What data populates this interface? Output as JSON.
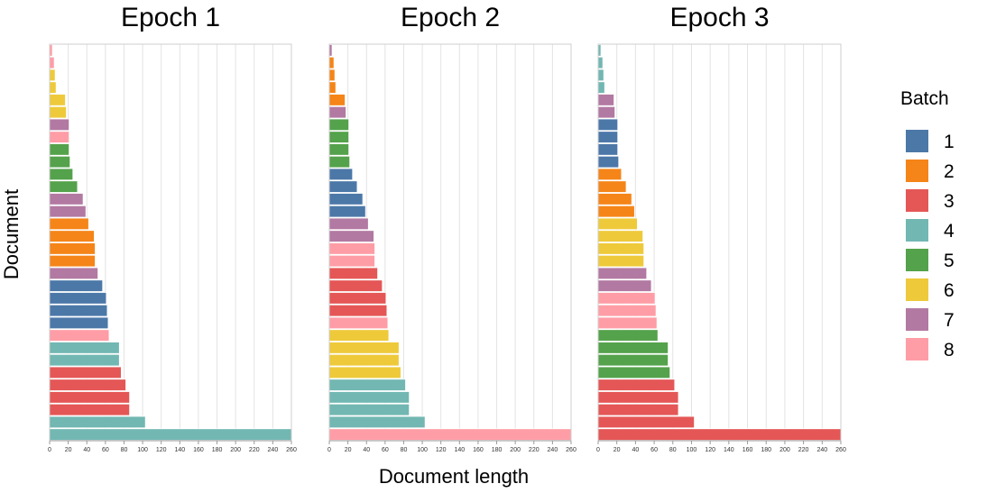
{
  "chart_data": {
    "type": "bar",
    "orientation": "horizontal",
    "xlabel": "Document length",
    "ylabel": "Document",
    "xlim": [
      0,
      260
    ],
    "x_ticks": [
      0,
      20,
      40,
      60,
      80,
      100,
      120,
      140,
      160,
      180,
      200,
      220,
      240,
      260
    ],
    "grid": true,
    "legend": {
      "title": "Batch",
      "position": "right",
      "entries": [
        {
          "label": "1",
          "color": "#4c78a8"
        },
        {
          "label": "2",
          "color": "#f58518"
        },
        {
          "label": "3",
          "color": "#e45756"
        },
        {
          "label": "4",
          "color": "#72b7b2"
        },
        {
          "label": "5",
          "color": "#54a24b"
        },
        {
          "label": "6",
          "color": "#eeca3b"
        },
        {
          "label": "7",
          "color": "#b279a2"
        },
        {
          "label": "8",
          "color": "#ff9da6"
        }
      ]
    },
    "panels": [
      {
        "title": "Epoch 1",
        "bars": [
          {
            "value": 3,
            "batch": 8
          },
          {
            "value": 5,
            "batch": 8
          },
          {
            "value": 6,
            "batch": 6
          },
          {
            "value": 7,
            "batch": 6
          },
          {
            "value": 17,
            "batch": 6
          },
          {
            "value": 18,
            "batch": 6
          },
          {
            "value": 21,
            "batch": 7
          },
          {
            "value": 21,
            "batch": 8
          },
          {
            "value": 21,
            "batch": 5
          },
          {
            "value": 22,
            "batch": 5
          },
          {
            "value": 25,
            "batch": 5
          },
          {
            "value": 30,
            "batch": 5
          },
          {
            "value": 36,
            "batch": 7
          },
          {
            "value": 39,
            "batch": 7
          },
          {
            "value": 42,
            "batch": 2
          },
          {
            "value": 48,
            "batch": 2
          },
          {
            "value": 49,
            "batch": 2
          },
          {
            "value": 49,
            "batch": 2
          },
          {
            "value": 52,
            "batch": 7
          },
          {
            "value": 57,
            "batch": 1
          },
          {
            "value": 61,
            "batch": 1
          },
          {
            "value": 62,
            "batch": 1
          },
          {
            "value": 63,
            "batch": 1
          },
          {
            "value": 64,
            "batch": 8
          },
          {
            "value": 75,
            "batch": 4
          },
          {
            "value": 75,
            "batch": 4
          },
          {
            "value": 77,
            "batch": 3
          },
          {
            "value": 82,
            "batch": 3
          },
          {
            "value": 86,
            "batch": 3
          },
          {
            "value": 86,
            "batch": 3
          },
          {
            "value": 103,
            "batch": 4
          },
          {
            "value": 260,
            "batch": 4
          }
        ]
      },
      {
        "title": "Epoch 2",
        "bars": [
          {
            "value": 3,
            "batch": 7
          },
          {
            "value": 5,
            "batch": 2
          },
          {
            "value": 6,
            "batch": 2
          },
          {
            "value": 7,
            "batch": 2
          },
          {
            "value": 17,
            "batch": 2
          },
          {
            "value": 18,
            "batch": 7
          },
          {
            "value": 21,
            "batch": 5
          },
          {
            "value": 21,
            "batch": 5
          },
          {
            "value": 21,
            "batch": 5
          },
          {
            "value": 22,
            "batch": 5
          },
          {
            "value": 25,
            "batch": 1
          },
          {
            "value": 30,
            "batch": 1
          },
          {
            "value": 36,
            "batch": 1
          },
          {
            "value": 39,
            "batch": 1
          },
          {
            "value": 42,
            "batch": 7
          },
          {
            "value": 48,
            "batch": 7
          },
          {
            "value": 49,
            "batch": 8
          },
          {
            "value": 49,
            "batch": 8
          },
          {
            "value": 52,
            "batch": 3
          },
          {
            "value": 57,
            "batch": 3
          },
          {
            "value": 61,
            "batch": 3
          },
          {
            "value": 62,
            "batch": 3
          },
          {
            "value": 63,
            "batch": 8
          },
          {
            "value": 64,
            "batch": 6
          },
          {
            "value": 75,
            "batch": 6
          },
          {
            "value": 75,
            "batch": 6
          },
          {
            "value": 77,
            "batch": 6
          },
          {
            "value": 82,
            "batch": 4
          },
          {
            "value": 86,
            "batch": 4
          },
          {
            "value": 86,
            "batch": 4
          },
          {
            "value": 103,
            "batch": 4
          },
          {
            "value": 260,
            "batch": 8
          }
        ]
      },
      {
        "title": "Epoch 3",
        "bars": [
          {
            "value": 3,
            "batch": 4
          },
          {
            "value": 5,
            "batch": 4
          },
          {
            "value": 6,
            "batch": 4
          },
          {
            "value": 7,
            "batch": 4
          },
          {
            "value": 17,
            "batch": 7
          },
          {
            "value": 18,
            "batch": 7
          },
          {
            "value": 21,
            "batch": 1
          },
          {
            "value": 21,
            "batch": 1
          },
          {
            "value": 21,
            "batch": 1
          },
          {
            "value": 22,
            "batch": 1
          },
          {
            "value": 25,
            "batch": 2
          },
          {
            "value": 30,
            "batch": 2
          },
          {
            "value": 36,
            "batch": 2
          },
          {
            "value": 39,
            "batch": 2
          },
          {
            "value": 42,
            "batch": 6
          },
          {
            "value": 48,
            "batch": 6
          },
          {
            "value": 49,
            "batch": 6
          },
          {
            "value": 49,
            "batch": 6
          },
          {
            "value": 52,
            "batch": 7
          },
          {
            "value": 57,
            "batch": 7
          },
          {
            "value": 61,
            "batch": 8
          },
          {
            "value": 62,
            "batch": 8
          },
          {
            "value": 63,
            "batch": 8
          },
          {
            "value": 64,
            "batch": 5
          },
          {
            "value": 75,
            "batch": 5
          },
          {
            "value": 75,
            "batch": 5
          },
          {
            "value": 77,
            "batch": 5
          },
          {
            "value": 82,
            "batch": 3
          },
          {
            "value": 86,
            "batch": 3
          },
          {
            "value": 86,
            "batch": 3
          },
          {
            "value": 103,
            "batch": 3
          },
          {
            "value": 260,
            "batch": 3
          }
        ]
      }
    ]
  }
}
